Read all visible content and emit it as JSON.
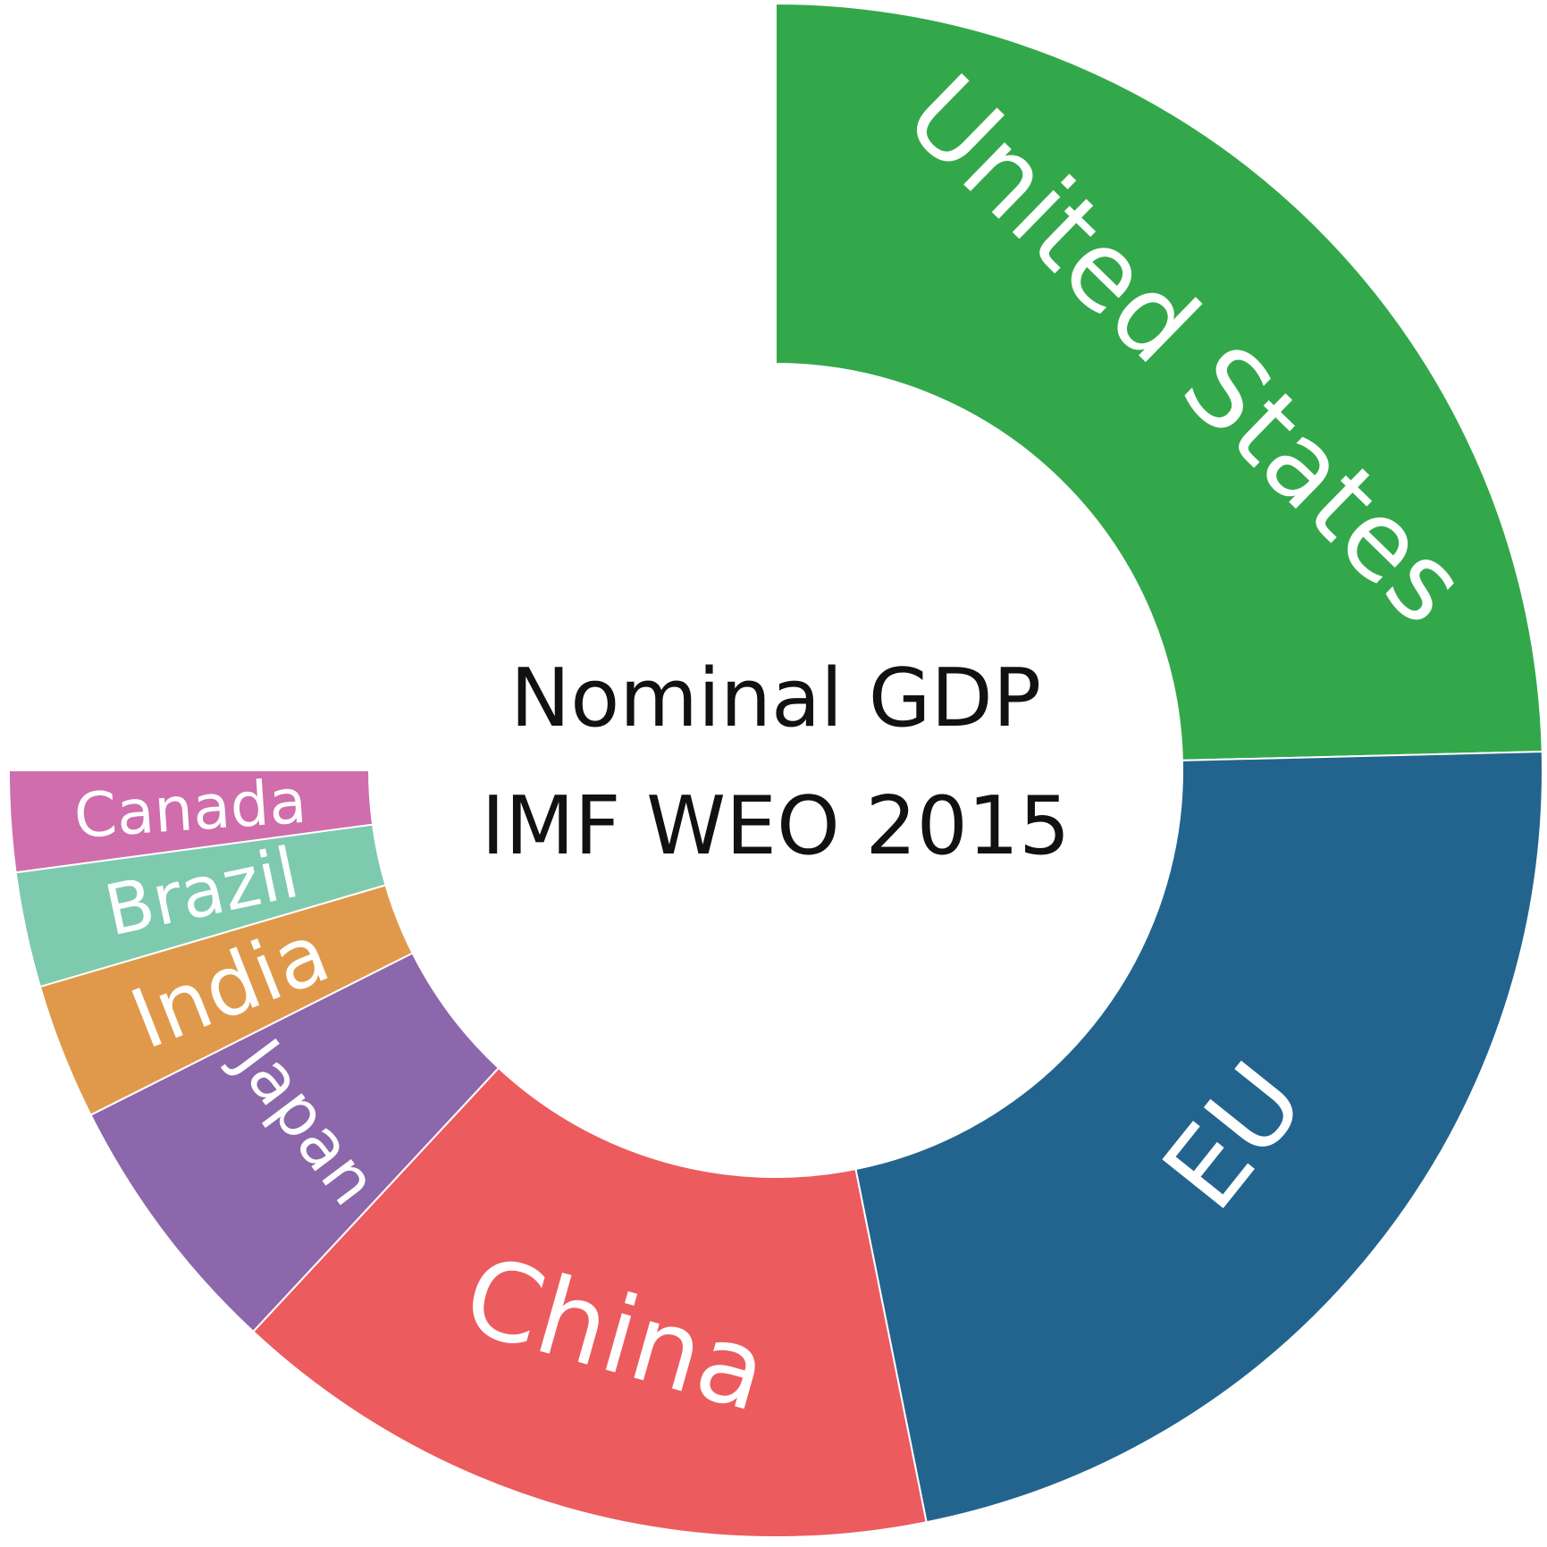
{
  "chart_data": {
    "type": "pie",
    "title_lines": [
      "Nominal GDP",
      "IMF WEO 2015"
    ],
    "categories": [
      "United States",
      "EU",
      "China",
      "Japan",
      "India",
      "Brazil",
      "Canada"
    ],
    "values": [
      17.95,
      16.22,
      11.0,
      4.12,
      2.09,
      1.77,
      1.55
    ],
    "colors": [
      "#33a84a",
      "#23648f",
      "#ec5b5e",
      "#8c67ab",
      "#e0994a",
      "#7ecaae",
      "#cf6dad"
    ]
  }
}
